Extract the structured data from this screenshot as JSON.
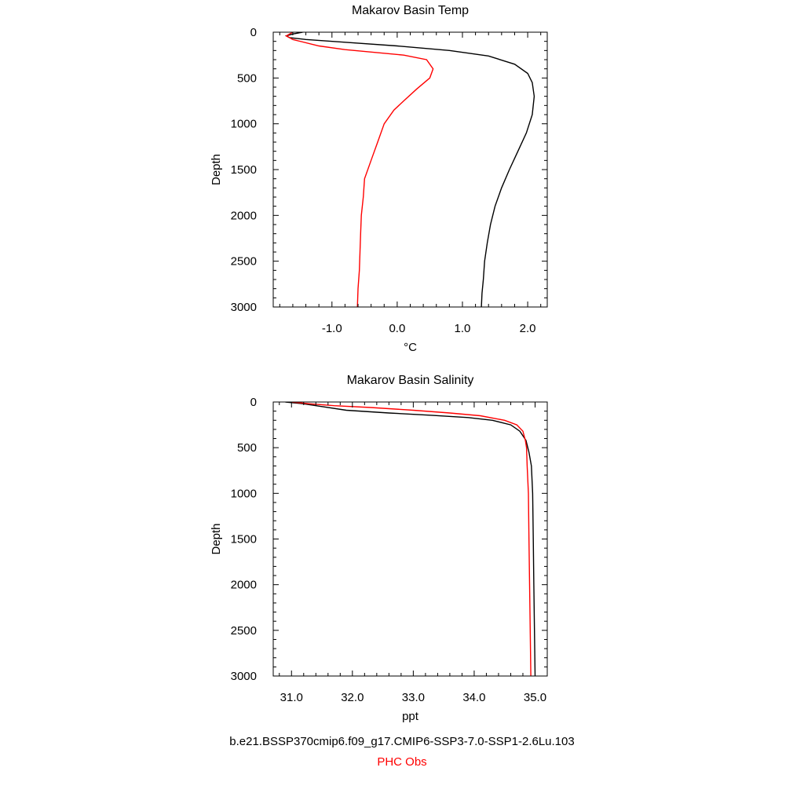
{
  "chart_data": [
    {
      "type": "line",
      "title": "Makarov Basin Temp",
      "xlabel": "°C",
      "ylabel": "Depth",
      "xlim": [
        -1.9,
        2.3
      ],
      "ylim": [
        3000,
        0
      ],
      "y_inverted": true,
      "xticks": [
        -1.0,
        0.0,
        1.0,
        2.0
      ],
      "xtick_labels": [
        "-1.0",
        "0.0",
        "1.0",
        "2.0"
      ],
      "yticks": [
        0,
        500,
        1000,
        1500,
        2000,
        2500,
        3000
      ],
      "ytick_labels": [
        "0",
        "500",
        "1000",
        "1500",
        "2000",
        "2500",
        "3000"
      ],
      "grid": false,
      "series": [
        {
          "name": "b.e21.BSSP370cmip6.f09_g17.CMIP6-SSP3-7.0-SSP1-2.6Lu.103",
          "color": "#000000",
          "points": [
            [
              -1.45,
              0
            ],
            [
              -1.6,
              20
            ],
            [
              -1.7,
              40
            ],
            [
              -1.65,
              60
            ],
            [
              -1.4,
              80
            ],
            [
              -0.8,
              110
            ],
            [
              0.0,
              150
            ],
            [
              0.8,
              200
            ],
            [
              1.4,
              260
            ],
            [
              1.8,
              350
            ],
            [
              2.0,
              450
            ],
            [
              2.07,
              550
            ],
            [
              2.1,
              700
            ],
            [
              2.07,
              900
            ],
            [
              1.98,
              1100
            ],
            [
              1.85,
              1300
            ],
            [
              1.72,
              1500
            ],
            [
              1.6,
              1700
            ],
            [
              1.5,
              1900
            ],
            [
              1.43,
              2100
            ],
            [
              1.38,
              2300
            ],
            [
              1.34,
              2500
            ],
            [
              1.32,
              2700
            ],
            [
              1.3,
              2850
            ],
            [
              1.29,
              3000
            ]
          ]
        },
        {
          "name": "PHC Obs",
          "color": "#ff0000",
          "points": [
            [
              -1.6,
              0
            ],
            [
              -1.7,
              40
            ],
            [
              -1.6,
              80
            ],
            [
              -1.2,
              150
            ],
            [
              -0.8,
              190
            ],
            [
              0.1,
              250
            ],
            [
              0.45,
              300
            ],
            [
              0.55,
              400
            ],
            [
              0.5,
              500
            ],
            [
              0.3,
              620
            ],
            [
              0.1,
              750
            ],
            [
              -0.05,
              850
            ],
            [
              -0.2,
              1000
            ],
            [
              -0.3,
              1200
            ],
            [
              -0.4,
              1400
            ],
            [
              -0.5,
              1600
            ],
            [
              -0.52,
              1800
            ],
            [
              -0.55,
              2000
            ],
            [
              -0.56,
              2200
            ],
            [
              -0.57,
              2400
            ],
            [
              -0.58,
              2600
            ],
            [
              -0.6,
              2800
            ],
            [
              -0.61,
              3000
            ]
          ]
        }
      ]
    },
    {
      "type": "line",
      "title": "Makarov Basin Salinity",
      "xlabel": "ppt",
      "ylabel": "Depth",
      "xlim": [
        30.7,
        35.2
      ],
      "ylim": [
        3000,
        0
      ],
      "y_inverted": true,
      "xticks": [
        31.0,
        32.0,
        33.0,
        34.0,
        35.0
      ],
      "xtick_labels": [
        "31.0",
        "32.0",
        "33.0",
        "34.0",
        "35.0"
      ],
      "yticks": [
        0,
        500,
        1000,
        1500,
        2000,
        2500,
        3000
      ],
      "ytick_labels": [
        "0",
        "500",
        "1000",
        "1500",
        "2000",
        "2500",
        "3000"
      ],
      "grid": false,
      "series": [
        {
          "name": "b.e21.BSSP370cmip6.f09_g17.CMIP6-SSP3-7.0-SSP1-2.6Lu.103",
          "color": "#000000",
          "points": [
            [
              30.9,
              0
            ],
            [
              31.2,
              20
            ],
            [
              31.5,
              50
            ],
            [
              31.9,
              90
            ],
            [
              32.6,
              120
            ],
            [
              33.3,
              145
            ],
            [
              33.9,
              170
            ],
            [
              34.3,
              200
            ],
            [
              34.6,
              250
            ],
            [
              34.75,
              320
            ],
            [
              34.85,
              420
            ],
            [
              34.9,
              550
            ],
            [
              34.94,
              700
            ],
            [
              34.96,
              1000
            ],
            [
              34.97,
              1500
            ],
            [
              34.98,
              2000
            ],
            [
              34.99,
              2500
            ],
            [
              35.0,
              3000
            ]
          ]
        },
        {
          "name": "PHC Obs",
          "color": "#ff0000",
          "points": [
            [
              31.0,
              0
            ],
            [
              31.3,
              20
            ],
            [
              31.7,
              40
            ],
            [
              32.3,
              60
            ],
            [
              33.0,
              90
            ],
            [
              33.6,
              120
            ],
            [
              34.1,
              150
            ],
            [
              34.5,
              200
            ],
            [
              34.7,
              250
            ],
            [
              34.8,
              320
            ],
            [
              34.84,
              420
            ],
            [
              34.86,
              500
            ],
            [
              34.87,
              700
            ],
            [
              34.89,
              1000
            ],
            [
              34.9,
              1500
            ],
            [
              34.91,
              2000
            ],
            [
              34.92,
              2500
            ],
            [
              34.93,
              3000
            ]
          ]
        }
      ]
    }
  ],
  "footer": {
    "model_label": "b.e21.BSSP370cmip6.f09_g17.CMIP6-SSP3-7.0-SSP1-2.6Lu.103",
    "model_color": "#000000",
    "obs_label": "PHC Obs",
    "obs_color": "#ff0000"
  }
}
